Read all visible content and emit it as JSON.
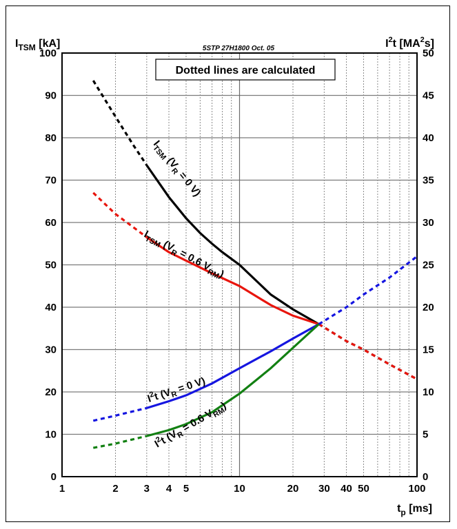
{
  "chart_data": {
    "type": "line",
    "reference": "5STP 27H1800 Oct. 05",
    "note": "Dotted lines are calculated",
    "x_axis": {
      "scale": "log",
      "range": [
        1,
        100
      ],
      "tick_labels": [
        {
          "value": 1,
          "label": "1"
        },
        {
          "value": 2,
          "label": "2"
        },
        {
          "value": 3,
          "label": "3"
        },
        {
          "value": 4,
          "label": "4"
        },
        {
          "value": 5,
          "label": "5"
        },
        {
          "value": 10,
          "label": "10"
        },
        {
          "value": 20,
          "label": "20"
        },
        {
          "value": 30,
          "label": "30"
        },
        {
          "value": 40,
          "label": "40"
        },
        {
          "value": 50,
          "label": "50"
        },
        {
          "value": 100,
          "label": "100"
        }
      ],
      "minor_gridlines": [
        2,
        3,
        4,
        5,
        6,
        7,
        8,
        9,
        20,
        30,
        40,
        50,
        60,
        70,
        80,
        90
      ],
      "major_gridlines": [
        10
      ],
      "label": {
        "main": "t",
        "sub": "p",
        "rest": " [ms]"
      }
    },
    "y_left": {
      "range": [
        0,
        100
      ],
      "ticks": [
        0,
        10,
        20,
        30,
        40,
        50,
        60,
        70,
        80,
        90,
        100
      ],
      "label": {
        "main": "I",
        "sub": "TSM",
        "rest": " [kA]"
      }
    },
    "y_right": {
      "range": [
        0,
        50
      ],
      "ticks": [
        0,
        5,
        10,
        15,
        20,
        25,
        30,
        35,
        40,
        45,
        50
      ],
      "label": {
        "main": "I",
        "sup": "2",
        "mid": "t [MA",
        "sup2": "2",
        "rest": "s]"
      }
    },
    "series": [
      {
        "id": "itsm_v0",
        "color": "#000000",
        "axis": "left",
        "label": {
          "a": "I",
          "a_sub": "TSM",
          "b": " (V",
          "b_sub": "R",
          "c": " = 0 V)",
          "c_sub": "",
          "d": ""
        },
        "points": [
          [
            1.5,
            93.5
          ],
          [
            2,
            85
          ],
          [
            2.5,
            78.5
          ],
          [
            3,
            73.5
          ],
          [
            4,
            66
          ],
          [
            5,
            61
          ],
          [
            6,
            57.5
          ],
          [
            7,
            55
          ],
          [
            8,
            53
          ],
          [
            10,
            50
          ],
          [
            15,
            43
          ],
          [
            20,
            39.5
          ],
          [
            28,
            36
          ],
          [
            40,
            32
          ],
          [
            50,
            30
          ],
          [
            70,
            26.5
          ],
          [
            100,
            23
          ]
        ],
        "solid_range": [
          3,
          28
        ]
      },
      {
        "id": "itsm_v06",
        "color": "#e8150d",
        "axis": "left",
        "label": {
          "a": "I",
          "a_sub": "TSM",
          "b": " (V",
          "b_sub": "R",
          "c": " = 0.6 V",
          "c_sub": "RM",
          "d": ")"
        },
        "points": [
          [
            1.5,
            67
          ],
          [
            2,
            62
          ],
          [
            2.5,
            59
          ],
          [
            3,
            56.5
          ],
          [
            4,
            53
          ],
          [
            5,
            51
          ],
          [
            7,
            48
          ],
          [
            10,
            45
          ],
          [
            15,
            40.5
          ],
          [
            20,
            38
          ],
          [
            28,
            36
          ],
          [
            40,
            32
          ],
          [
            50,
            30
          ],
          [
            70,
            26.5
          ],
          [
            100,
            23
          ]
        ],
        "solid_range": [
          3,
          28
        ]
      },
      {
        "id": "i2t_v0",
        "color": "#1515e0",
        "axis": "right",
        "label": {
          "a": "I",
          "a_sup": "2",
          "b": "t (V",
          "b_sub": "R",
          "c": " = 0 V)",
          "c_sub": "",
          "d": ""
        },
        "points": [
          [
            1.5,
            6.6
          ],
          [
            2,
            7.2
          ],
          [
            2.5,
            7.7
          ],
          [
            3,
            8.1
          ],
          [
            4,
            8.9
          ],
          [
            5,
            9.6
          ],
          [
            7,
            11
          ],
          [
            10,
            12.8
          ],
          [
            15,
            14.8
          ],
          [
            20,
            16.3
          ],
          [
            28,
            18
          ],
          [
            40,
            20
          ],
          [
            50,
            21.5
          ],
          [
            70,
            23.5
          ],
          [
            100,
            26
          ]
        ],
        "solid_range": [
          3,
          28
        ]
      },
      {
        "id": "i2t_v06",
        "color": "#128012",
        "axis": "right",
        "label": {
          "a": "I",
          "a_sup": "2",
          "b": "t (V",
          "b_sub": "R",
          "c": " = 0.6 V",
          "c_sub": "RM",
          "d": ")"
        },
        "points": [
          [
            1.5,
            3.4
          ],
          [
            2,
            3.9
          ],
          [
            2.5,
            4.4
          ],
          [
            3,
            4.8
          ],
          [
            4,
            5.5
          ],
          [
            5,
            6.2
          ],
          [
            7,
            7.6
          ],
          [
            10,
            9.8
          ],
          [
            15,
            12.8
          ],
          [
            20,
            15.2
          ],
          [
            28,
            18
          ]
        ],
        "solid_range": [
          3,
          28
        ]
      }
    ]
  }
}
